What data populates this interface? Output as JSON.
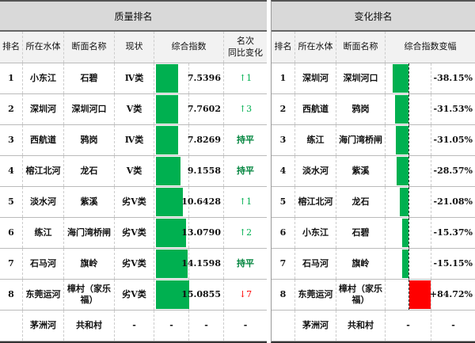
{
  "quality": {
    "title": "质量排名",
    "headers": [
      "排名",
      "所在水体",
      "断面名称",
      "现状",
      "综合指数",
      "名次\n同比变化"
    ],
    "rows": [
      {
        "rank": "1",
        "water": "小东江",
        "section": "石碧",
        "status": "Ⅳ类",
        "index": 7.5396,
        "index_text": "7.5396",
        "change": "↑1",
        "change_type": "up"
      },
      {
        "rank": "2",
        "water": "深圳河",
        "section": "深圳河口",
        "status": "Ⅴ类",
        "index": 7.7602,
        "index_text": "7.7602",
        "change": "↑3",
        "change_type": "up"
      },
      {
        "rank": "3",
        "water": "西航道",
        "section": "鸦岗",
        "status": "Ⅳ类",
        "index": 7.8269,
        "index_text": "7.8269",
        "change": "持平",
        "change_type": "flat"
      },
      {
        "rank": "4",
        "water": "榕江北河",
        "section": "龙石",
        "status": "Ⅴ类",
        "index": 9.1558,
        "index_text": "9.1558",
        "change": "持平",
        "change_type": "flat"
      },
      {
        "rank": "5",
        "water": "淡水河",
        "section": "紫溪",
        "status": "劣Ⅴ类",
        "index": 10.6428,
        "index_text": "10.6428",
        "change": "↑1",
        "change_type": "up"
      },
      {
        "rank": "6",
        "water": "练江",
        "section": "海门湾桥闸",
        "status": "劣Ⅴ类",
        "index": 13.079,
        "index_text": "13.0790",
        "change": "↑2",
        "change_type": "up"
      },
      {
        "rank": "7",
        "water": "石马河",
        "section": "旗岭",
        "status": "劣Ⅴ类",
        "index": 14.1598,
        "index_text": "14.1598",
        "change": "持平",
        "change_type": "flat"
      },
      {
        "rank": "8",
        "water": "东莞运河",
        "section": "樟村（家乐福）",
        "status": "劣Ⅴ类",
        "index": 15.0855,
        "index_text": "15.0855",
        "change": "↓7",
        "change_type": "down"
      },
      {
        "rank": "",
        "water": "茅洲河",
        "section": "共和村",
        "status": "-",
        "index": null,
        "index_bar_text": "-",
        "index_text": "-",
        "change": "-",
        "change_type": "none"
      }
    ]
  },
  "change": {
    "title": "变化排名",
    "headers": [
      "排名",
      "所在水体",
      "断面名称",
      "综合指数变幅"
    ],
    "rows": [
      {
        "rank": "1",
        "water": "深圳河",
        "section": "深圳河口",
        "pct": -38.15,
        "pct_text": "-38.15%"
      },
      {
        "rank": "2",
        "water": "西航道",
        "section": "鸦岗",
        "pct": -31.53,
        "pct_text": "-31.53%"
      },
      {
        "rank": "3",
        "water": "练江",
        "section": "海门湾桥闸",
        "pct": -31.05,
        "pct_text": "-31.05%"
      },
      {
        "rank": "4",
        "water": "淡水河",
        "section": "紫溪",
        "pct": -28.57,
        "pct_text": "-28.57%"
      },
      {
        "rank": "5",
        "water": "榕江北河",
        "section": "龙石",
        "pct": -21.08,
        "pct_text": "-21.08%"
      },
      {
        "rank": "6",
        "water": "小东江",
        "section": "石碧",
        "pct": -15.37,
        "pct_text": "-15.37%"
      },
      {
        "rank": "7",
        "water": "石马河",
        "section": "旗岭",
        "pct": -15.15,
        "pct_text": "-15.15%"
      },
      {
        "rank": "8",
        "water": "东莞运河",
        "section": "樟村（家乐福）",
        "pct": 84.72,
        "pct_text": "+84.72%"
      },
      {
        "rank": "",
        "water": "茅洲河",
        "section": "共和村",
        "pct": null,
        "pct_bar_text": "-",
        "pct_text": "-"
      }
    ]
  },
  "colors": {
    "good": "#00b050",
    "bad": "#ff0000",
    "header_bg": "#d9d9d9"
  }
}
